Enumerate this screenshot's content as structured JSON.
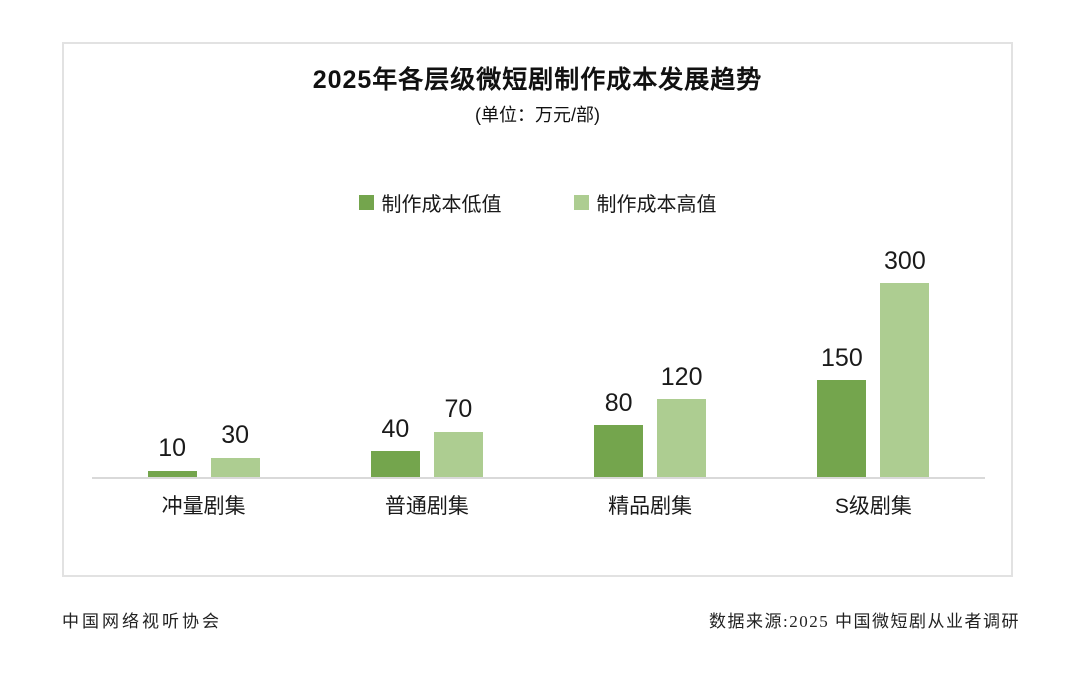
{
  "chart_data": {
    "type": "bar",
    "title": "2025年各层级微短剧制作成本发展趋势",
    "subtitle": "(单位：万元/部)",
    "categories": [
      "冲量剧集",
      "普通剧集",
      "精品剧集",
      "S级剧集"
    ],
    "series": [
      {
        "name": "制作成本低值",
        "color": "#74a54d",
        "values": [
          10,
          40,
          80,
          150
        ]
      },
      {
        "name": "制作成本高值",
        "color": "#adcd91",
        "values": [
          30,
          70,
          120,
          300
        ]
      }
    ],
    "xlabel": "",
    "ylabel": "",
    "ylim": [
      0,
      300
    ],
    "grid": false,
    "legend_position": "top",
    "data_labels": true,
    "axis_line_color": "#d9d9d9"
  },
  "footer": {
    "left": "中国网络视听协会",
    "right": "数据来源:2025 中国微短剧从业者调研"
  }
}
